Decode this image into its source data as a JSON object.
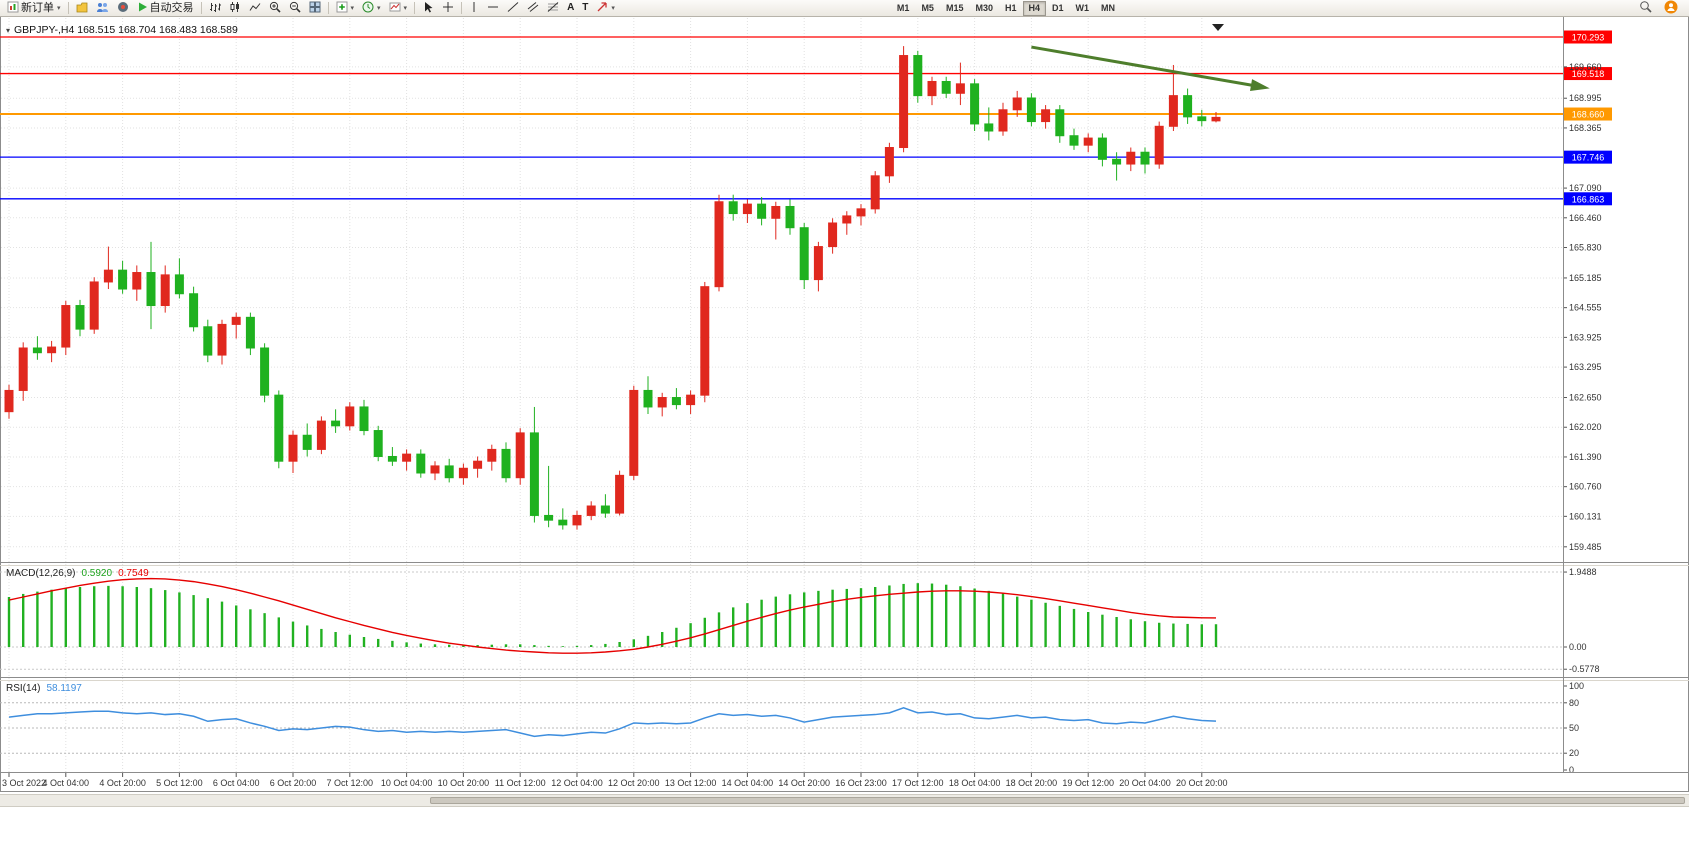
{
  "toolbar": {
    "new_order": "新订单",
    "autotrading": "自动交易",
    "text_tool": "A",
    "label_tool": "T",
    "timeframes": [
      "M1",
      "M5",
      "M15",
      "M30",
      "H1",
      "H4",
      "D1",
      "W1",
      "MN"
    ],
    "active_timeframe": "H4"
  },
  "chart": {
    "header": "GBPJPY-,H4 168.515 168.704 168.483 168.589",
    "symbol": "GBPJPY-",
    "period": "H4",
    "ohlc": {
      "open": "168.515",
      "high": "168.704",
      "low": "168.483",
      "close": "168.589"
    }
  },
  "indicators": {
    "macd": {
      "label": "MACD(12,26,9)",
      "main_value": "0.5920",
      "signal_value": "0.7549"
    },
    "rsi": {
      "label": "RSI(14)",
      "value": "58.1197"
    }
  },
  "chart_data": {
    "type": "candlestick",
    "symbol": "GBPJPY-",
    "timeframe": "H4",
    "price_range": [
      159.4,
      170.6
    ],
    "label_every": 4,
    "colors": {
      "up": "#e0281e",
      "down": "#1fb11f",
      "grid": "#e2e2e2"
    },
    "candles": [
      [
        162.35,
        162.92,
        162.2,
        162.8
      ],
      [
        162.8,
        163.82,
        162.58,
        163.7
      ],
      [
        163.7,
        163.95,
        163.45,
        163.6
      ],
      [
        163.6,
        163.85,
        163.4,
        163.72
      ],
      [
        163.72,
        164.7,
        163.55,
        164.6
      ],
      [
        164.6,
        164.72,
        163.95,
        164.1
      ],
      [
        164.1,
        165.2,
        164.0,
        165.1
      ],
      [
        165.1,
        165.85,
        164.95,
        165.35
      ],
      [
        165.35,
        165.55,
        164.85,
        164.95
      ],
      [
        164.95,
        165.45,
        164.7,
        165.3
      ],
      [
        165.3,
        165.95,
        164.1,
        164.6
      ],
      [
        164.6,
        165.45,
        164.45,
        165.25
      ],
      [
        165.25,
        165.6,
        164.75,
        164.85
      ],
      [
        164.85,
        165.0,
        164.05,
        164.15
      ],
      [
        164.15,
        164.3,
        163.4,
        163.55
      ],
      [
        163.55,
        164.3,
        163.35,
        164.2
      ],
      [
        164.2,
        164.45,
        163.9,
        164.35
      ],
      [
        164.35,
        164.45,
        163.55,
        163.7
      ],
      [
        163.7,
        163.8,
        162.55,
        162.7
      ],
      [
        162.7,
        162.8,
        161.15,
        161.3
      ],
      [
        161.3,
        161.95,
        161.05,
        161.85
      ],
      [
        161.85,
        162.1,
        161.4,
        161.55
      ],
      [
        161.55,
        162.25,
        161.45,
        162.15
      ],
      [
        162.15,
        162.4,
        161.9,
        162.05
      ],
      [
        162.05,
        162.55,
        161.95,
        162.45
      ],
      [
        162.45,
        162.6,
        161.85,
        161.95
      ],
      [
        161.95,
        162.05,
        161.3,
        161.4
      ],
      [
        161.4,
        161.6,
        161.2,
        161.3
      ],
      [
        161.3,
        161.55,
        161.1,
        161.45
      ],
      [
        161.45,
        161.55,
        160.95,
        161.05
      ],
      [
        161.05,
        161.3,
        160.9,
        161.2
      ],
      [
        161.2,
        161.35,
        160.85,
        160.95
      ],
      [
        160.95,
        161.25,
        160.8,
        161.15
      ],
      [
        161.15,
        161.4,
        160.95,
        161.3
      ],
      [
        161.3,
        161.65,
        161.1,
        161.55
      ],
      [
        161.55,
        161.7,
        160.85,
        160.95
      ],
      [
        160.95,
        162.0,
        160.8,
        161.9
      ],
      [
        161.9,
        162.45,
        160.0,
        160.15
      ],
      [
        160.15,
        161.2,
        159.9,
        160.05
      ],
      [
        160.05,
        160.3,
        159.85,
        159.95
      ],
      [
        159.95,
        160.25,
        159.85,
        160.15
      ],
      [
        160.15,
        160.45,
        160.05,
        160.35
      ],
      [
        160.35,
        160.6,
        160.1,
        160.2
      ],
      [
        160.2,
        161.1,
        160.15,
        161.0
      ],
      [
        161.0,
        162.9,
        160.9,
        162.8
      ],
      [
        162.8,
        163.1,
        162.3,
        162.45
      ],
      [
        162.45,
        162.75,
        162.25,
        162.65
      ],
      [
        162.65,
        162.85,
        162.4,
        162.5
      ],
      [
        162.5,
        162.8,
        162.3,
        162.7
      ],
      [
        162.7,
        165.1,
        162.55,
        165.0
      ],
      [
        165.0,
        166.95,
        164.9,
        166.8
      ],
      [
        166.8,
        166.95,
        166.4,
        166.55
      ],
      [
        166.55,
        166.85,
        166.35,
        166.75
      ],
      [
        166.75,
        166.9,
        166.3,
        166.45
      ],
      [
        166.45,
        166.8,
        166.0,
        166.7
      ],
      [
        166.7,
        166.85,
        166.1,
        166.25
      ],
      [
        166.25,
        166.35,
        164.95,
        165.15
      ],
      [
        165.15,
        165.95,
        164.9,
        165.85
      ],
      [
        165.85,
        166.45,
        165.7,
        166.35
      ],
      [
        166.35,
        166.6,
        166.1,
        166.5
      ],
      [
        166.5,
        166.75,
        166.3,
        166.65
      ],
      [
        166.65,
        167.45,
        166.55,
        167.35
      ],
      [
        167.35,
        168.05,
        167.2,
        167.95
      ],
      [
        167.95,
        170.1,
        167.85,
        169.9
      ],
      [
        169.9,
        170.0,
        168.9,
        169.05
      ],
      [
        169.05,
        169.45,
        168.85,
        169.35
      ],
      [
        169.35,
        169.45,
        169.0,
        169.1
      ],
      [
        169.1,
        169.75,
        168.85,
        169.3
      ],
      [
        169.3,
        169.4,
        168.3,
        168.45
      ],
      [
        168.45,
        168.8,
        168.1,
        168.3
      ],
      [
        168.3,
        168.9,
        168.2,
        168.75
      ],
      [
        168.75,
        169.15,
        168.6,
        169.0
      ],
      [
        169.0,
        169.1,
        168.4,
        168.5
      ],
      [
        168.5,
        168.85,
        168.35,
        168.75
      ],
      [
        168.75,
        168.85,
        168.05,
        168.2
      ],
      [
        168.2,
        168.35,
        167.9,
        168.0
      ],
      [
        168.0,
        168.25,
        167.85,
        168.15
      ],
      [
        168.15,
        168.25,
        167.55,
        167.7
      ],
      [
        167.7,
        167.85,
        167.25,
        167.6
      ],
      [
        167.6,
        167.95,
        167.45,
        167.85
      ],
      [
        167.85,
        167.95,
        167.4,
        167.6
      ],
      [
        167.6,
        168.5,
        167.5,
        168.4
      ],
      [
        168.4,
        169.7,
        168.3,
        169.05
      ],
      [
        169.05,
        169.2,
        168.45,
        168.6
      ],
      [
        168.6,
        168.75,
        168.4,
        168.52
      ],
      [
        168.515,
        168.704,
        168.483,
        168.589
      ]
    ],
    "time_labels": [
      "3 Oct 2022",
      "4 Oct 04:00",
      "4 Oct 20:00",
      "5 Oct 12:00",
      "6 Oct 04:00",
      "6 Oct 20:00",
      "7 Oct 12:00",
      "10 Oct 04:00",
      "10 Oct 20:00",
      "11 Oct 12:00",
      "12 Oct 04:00",
      "12 Oct 20:00",
      "13 Oct 12:00",
      "14 Oct 04:00",
      "14 Oct 20:00",
      "16 Oct 23:00",
      "17 Oct 12:00",
      "18 Oct 04:00",
      "18 Oct 20:00",
      "19 Oct 12:00",
      "20 Oct 04:00",
      "20 Oct 20:00"
    ],
    "price_ticks": [
      169.66,
      168.995,
      168.365,
      167.09,
      166.46,
      165.83,
      165.185,
      164.555,
      163.925,
      163.295,
      162.65,
      162.02,
      161.39,
      160.76,
      160.131,
      159.485
    ],
    "hlines": [
      {
        "price": 170.293,
        "color": "#ff0000",
        "width": 1.3
      },
      {
        "price": 169.518,
        "color": "#ff0000",
        "width": 1.3
      },
      {
        "price": 168.66,
        "color": "#ff9900",
        "width": 2
      },
      {
        "price": 167.746,
        "color": "#0000ff",
        "width": 1.3
      },
      {
        "price": 166.863,
        "color": "#0000ff",
        "width": 1.3
      }
    ],
    "arrow": {
      "from_index": 72,
      "from_price": 170.08,
      "to_index": 88.3,
      "to_price": 169.23,
      "color": "#4e7e2c"
    },
    "macd": {
      "params": "12,26,9",
      "colors": {
        "histogram": "#21b121",
        "signal": "#e60000"
      },
      "axis_ticks": [
        {
          "v": 1.9488,
          "label": "1.9488"
        },
        {
          "v": 0,
          "label": "0.00"
        },
        {
          "v": -0.5778,
          "label": "-0.5778"
        }
      ],
      "main": [
        1.3,
        1.38,
        1.44,
        1.49,
        1.53,
        1.56,
        1.58,
        1.59,
        1.58,
        1.56,
        1.53,
        1.48,
        1.42,
        1.35,
        1.27,
        1.18,
        1.08,
        0.98,
        0.88,
        0.77,
        0.66,
        0.56,
        0.47,
        0.39,
        0.32,
        0.26,
        0.21,
        0.16,
        0.12,
        0.09,
        0.07,
        0.06,
        0.05,
        0.05,
        0.06,
        0.07,
        0.07,
        0.05,
        0.03,
        0.02,
        0.03,
        0.05,
        0.08,
        0.13,
        0.2,
        0.29,
        0.39,
        0.5,
        0.62,
        0.76,
        0.9,
        1.03,
        1.14,
        1.23,
        1.31,
        1.37,
        1.42,
        1.46,
        1.49,
        1.51,
        1.53,
        1.56,
        1.6,
        1.64,
        1.66,
        1.65,
        1.62,
        1.58,
        1.52,
        1.46,
        1.39,
        1.31,
        1.23,
        1.15,
        1.07,
        0.99,
        0.91,
        0.84,
        0.78,
        0.72,
        0.67,
        0.63,
        0.61,
        0.6,
        0.59,
        0.592
      ],
      "signal": [
        1.22,
        1.3,
        1.38,
        1.46,
        1.53,
        1.6,
        1.66,
        1.71,
        1.75,
        1.77,
        1.78,
        1.77,
        1.74,
        1.7,
        1.64,
        1.57,
        1.49,
        1.4,
        1.3,
        1.2,
        1.09,
        0.98,
        0.87,
        0.76,
        0.66,
        0.56,
        0.47,
        0.38,
        0.3,
        0.23,
        0.16,
        0.1,
        0.05,
        0.0,
        -0.04,
        -0.08,
        -0.11,
        -0.13,
        -0.15,
        -0.16,
        -0.16,
        -0.15,
        -0.13,
        -0.1,
        -0.06,
        0.0,
        0.07,
        0.15,
        0.24,
        0.34,
        0.45,
        0.56,
        0.67,
        0.77,
        0.87,
        0.96,
        1.04,
        1.11,
        1.18,
        1.24,
        1.29,
        1.33,
        1.37,
        1.4,
        1.43,
        1.45,
        1.46,
        1.46,
        1.45,
        1.43,
        1.4,
        1.36,
        1.31,
        1.26,
        1.2,
        1.14,
        1.08,
        1.02,
        0.96,
        0.9,
        0.85,
        0.81,
        0.78,
        0.77,
        0.76,
        0.7549
      ]
    },
    "rsi": {
      "period": 14,
      "color": "#3e8ede",
      "axis_ticks": [
        {
          "v": 100,
          "label": "100",
          "dash": false
        },
        {
          "v": 80,
          "label": "80",
          "dash": true
        },
        {
          "v": 50,
          "label": "50",
          "dash": true
        },
        {
          "v": 20,
          "label": "20",
          "dash": true
        },
        {
          "v": 0,
          "label": "0",
          "dash": false
        }
      ],
      "values": [
        63,
        65,
        67,
        67,
        68,
        69,
        70,
        70,
        68,
        67,
        68,
        66,
        67,
        64,
        58,
        60,
        61,
        56,
        52,
        47,
        49,
        48,
        50,
        52,
        51,
        48,
        46,
        47,
        45,
        46,
        45,
        46,
        45,
        46,
        47,
        48,
        44,
        40,
        42,
        41,
        43,
        45,
        44,
        49,
        56,
        55,
        56,
        55,
        56,
        62,
        67,
        65,
        66,
        64,
        65,
        62,
        57,
        60,
        63,
        64,
        65,
        66,
        68,
        74,
        68,
        69,
        66,
        67,
        62,
        61,
        63,
        65,
        62,
        63,
        60,
        59,
        60,
        56,
        55,
        57,
        56,
        60,
        64,
        61,
        59,
        58.12
      ]
    }
  }
}
